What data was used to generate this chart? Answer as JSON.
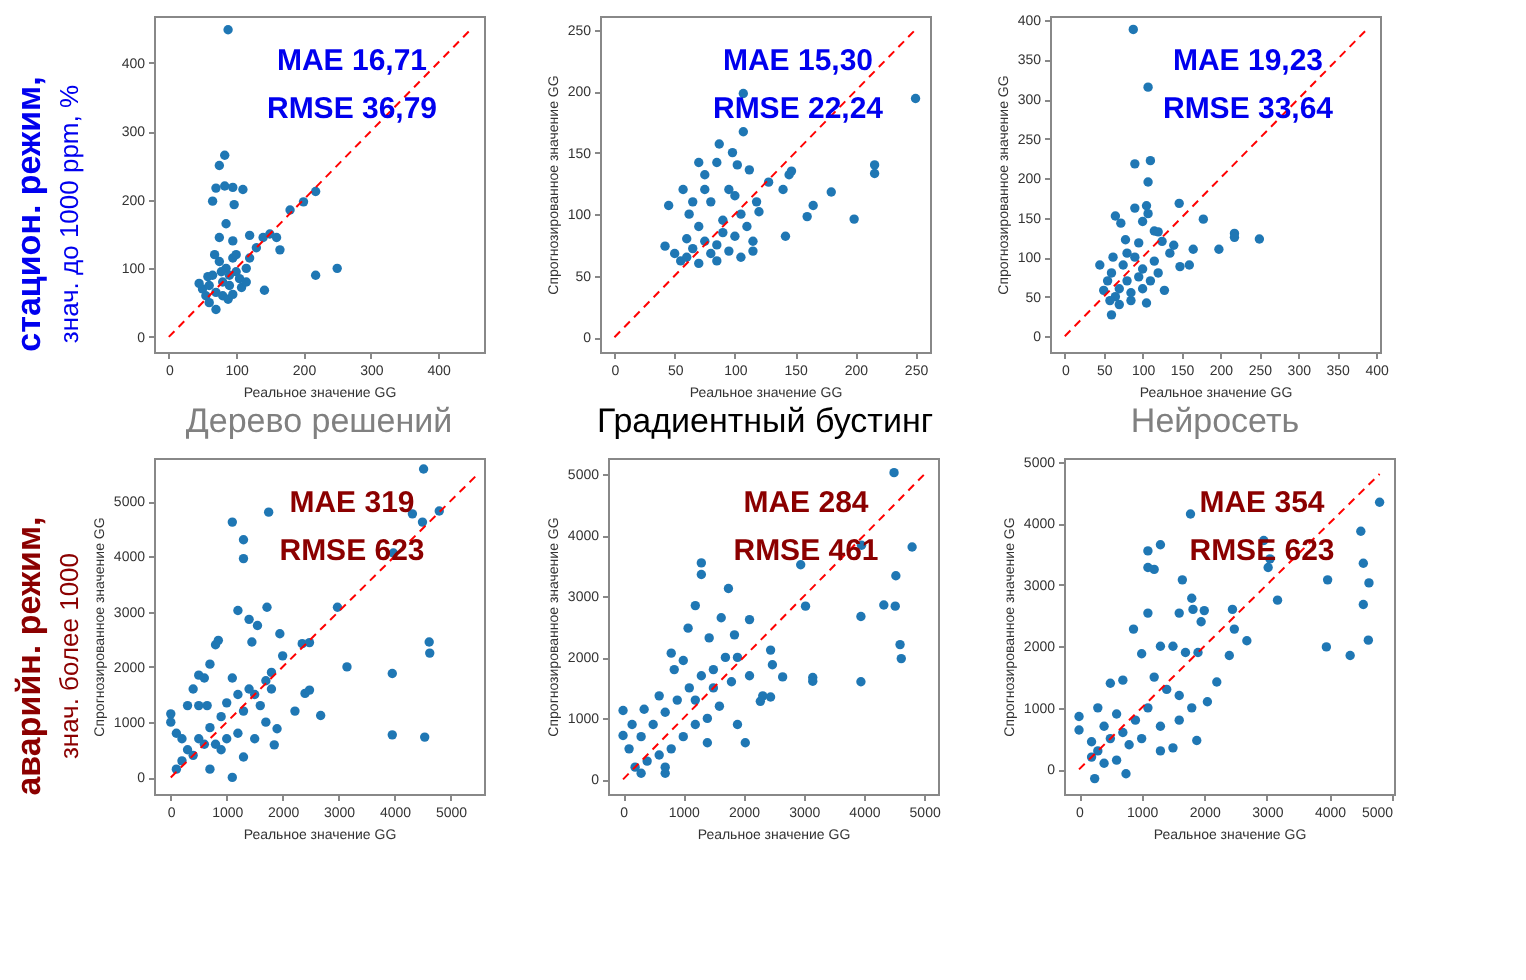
{
  "chart_data": [
    {
      "type": "scatter",
      "title": "Дерево решений",
      "xlabel": "Реальное значение GG",
      "xlim": [
        -22,
        468
      ],
      "ylim": [
        -22,
        468
      ],
      "xticks": [
        0,
        100,
        200,
        300,
        400
      ],
      "yticks": [
        0,
        100,
        200,
        300,
        400
      ],
      "annotations": [
        "MAE 16,71",
        "RMSE 36,79",
        "стацион. режим,",
        "знач. до 1000 ppm, %"
      ],
      "series": [
        {
          "marker": "circle",
          "color": "#1f77b4",
          "x": [
            88,
            83,
            75,
            70,
            83,
            95,
            110,
            65,
            97,
            85,
            75,
            95,
            120,
            200,
            218,
            180,
            140,
            150,
            160,
            165,
            130,
            142,
            218,
            250,
            50,
            45,
            60,
            70,
            55,
            65,
            75,
            80,
            85,
            90,
            95,
            100,
            105,
            115,
            60,
            70,
            80,
            90,
            100,
            120,
            68,
            78,
            58,
            88,
            108,
            115,
            95
          ],
          "values": [
            448,
            265,
            250,
            217,
            220,
            218,
            215,
            198,
            193,
            165,
            145,
            140,
            148,
            197,
            212,
            185,
            145,
            150,
            145,
            127,
            130,
            68,
            90,
            100,
            70,
            78,
            50,
            40,
            60,
            90,
            110,
            80,
            100,
            75,
            115,
            95,
            85,
            100,
            75,
            65,
            60,
            90,
            120,
            115,
            120,
            95,
            88,
            55,
            72,
            80,
            62
          ]
        },
        {
          "type": "line",
          "color": "#ff0000",
          "line_style": "dashed",
          "x": [
            0,
            446
          ],
          "values": [
            0,
            446
          ]
        }
      ]
    },
    {
      "type": "scatter",
      "title": "Градиентный бустинг",
      "xlabel": "Реальное значение GG",
      "ylabel": "Спрогнозированное значение GG",
      "xlim": [
        -12,
        262
      ],
      "ylim": [
        -12,
        261
      ],
      "xticks": [
        0,
        50,
        100,
        150,
        200,
        250
      ],
      "yticks": [
        0,
        50,
        100,
        150,
        200,
        250
      ],
      "annotations": [
        "MAE 15,30",
        "RMSE 22,24"
      ],
      "series": [
        {
          "marker": "circle",
          "color": "#1f77b4",
          "x": [
            107,
            250,
            107,
            87,
            70,
            85,
            98,
            102,
            112,
            75,
            128,
            147,
            145,
            140,
            216,
            216,
            180,
            165,
            160,
            199,
            142,
            115,
            115,
            45,
            57,
            62,
            42,
            50,
            55,
            60,
            65,
            70,
            75,
            80,
            85,
            90,
            95,
            100,
            105,
            110,
            120,
            95,
            75,
            80,
            100,
            60,
            70,
            85,
            65,
            90,
            118,
            105
          ],
          "values": [
            198,
            194,
            167,
            157,
            142,
            142,
            150,
            140,
            136,
            132,
            126,
            135,
            132,
            120,
            140,
            133,
            118,
            107,
            98,
            96,
            82,
            78,
            70,
            107,
            120,
            100,
            74,
            68,
            62,
            80,
            72,
            90,
            78,
            68,
            75,
            95,
            70,
            82,
            100,
            90,
            102,
            120,
            120,
            110,
            115,
            65,
            60,
            62,
            110,
            85,
            110,
            65
          ]
        },
        {
          "type": "line",
          "color": "#ff0000",
          "line_style": "dashed",
          "x": [
            0,
            249
          ],
          "values": [
            0,
            249
          ]
        }
      ]
    },
    {
      "type": "scatter",
      "title": "Нейросеть",
      "xlabel": "Реальное значение GG",
      "ylabel": "Спрогнозированное значение GG",
      "xlim": [
        -19,
        405
      ],
      "ylim": [
        -20,
        405
      ],
      "xticks": [
        0,
        50,
        100,
        150,
        200,
        250,
        300,
        350,
        400
      ],
      "yticks": [
        0,
        50,
        100,
        150,
        200,
        250,
        300,
        350,
        400
      ],
      "annotations": [
        "MAE 19,23",
        "RMSE 33,64"
      ],
      "series": [
        {
          "marker": "circle",
          "color": "#1f77b4",
          "x": [
            88,
            107,
            110,
            90,
            107,
            90,
            105,
            107,
            147,
            178,
            65,
            72,
            100,
            115,
            120,
            125,
            78,
            95,
            135,
            140,
            148,
            160,
            165,
            198,
            218,
            218,
            250,
            128,
            105,
            60,
            45,
            50,
            55,
            60,
            62,
            65,
            70,
            75,
            80,
            85,
            90,
            95,
            100,
            110,
            115,
            70,
            80,
            58,
            85,
            120,
            100
          ],
          "values": [
            388,
            315,
            222,
            218,
            195,
            162,
            165,
            155,
            168,
            148,
            152,
            143,
            145,
            133,
            132,
            120,
            122,
            118,
            105,
            115,
            88,
            90,
            110,
            110,
            130,
            125,
            123,
            58,
            42,
            27,
            90,
            58,
            70,
            80,
            100,
            50,
            60,
            90,
            70,
            45,
            100,
            75,
            85,
            70,
            95,
            40,
            105,
            45,
            55,
            80,
            60
          ]
        },
        {
          "type": "line",
          "color": "#ff0000",
          "line_style": "dashed",
          "x": [
            0,
            388
          ],
          "values": [
            0,
            388
          ]
        }
      ]
    },
    {
      "type": "scatter",
      "xlabel": "Реальное значение GG",
      "ylabel": "Спрогнозированное значение GG",
      "xlim": [
        -300,
        5600
      ],
      "ylim": [
        -300,
        5780
      ],
      "xticks": [
        0,
        1000,
        2000,
        3000,
        4000,
        5000
      ],
      "yticks": [
        0,
        1000,
        2000,
        3000,
        4000,
        5000
      ],
      "annotations": [
        "MAE 319",
        "RMSE 623",
        "аварийн. режим,",
        "знач. более 1000"
      ],
      "series": [
        {
          "marker": "circle",
          "color": "#1f77b4",
          "x": [
            4520,
            4800,
            4320,
            4500,
            1100,
            1300,
            1300,
            1750,
            3980,
            2980,
            1200,
            1720,
            1400,
            1550,
            850,
            800,
            1450,
            1950,
            2350,
            2480,
            4620,
            4630,
            3150,
            3960,
            3960,
            4540,
            2680,
            2220,
            2400,
            2480,
            1900,
            1850,
            1300,
            1100,
            0,
            0,
            400,
            500,
            600,
            700,
            1100,
            1000,
            1200,
            1500,
            1700,
            1800,
            1600,
            1300,
            900,
            700,
            500,
            300,
            200,
            100,
            400,
            600,
            800,
            1000,
            1200,
            1500,
            1700,
            500,
            650,
            300,
            900,
            2000,
            1800,
            1400,
            200,
            100,
            700
          ],
          "values": [
            5580,
            4820,
            4770,
            4620,
            4620,
            4300,
            3960,
            4800,
            4060,
            3080,
            3020,
            3080,
            2860,
            2750,
            2480,
            2400,
            2450,
            2600,
            2420,
            2440,
            2450,
            2250,
            2000,
            1880,
            770,
            730,
            1120,
            1200,
            1520,
            1580,
            880,
            590,
            370,
            0,
            1150,
            1000,
            1600,
            1850,
            1800,
            2050,
            1800,
            1350,
            1500,
            1500,
            1750,
            1600,
            1300,
            1200,
            1100,
            900,
            700,
            500,
            300,
            150,
            400,
            600,
            600,
            700,
            800,
            700,
            1000,
            1300,
            1300,
            1300,
            500,
            2200,
            1900,
            1600,
            700,
            800,
            150
          ]
        },
        {
          "type": "line",
          "color": "#ff0000",
          "line_style": "dashed",
          "x": [
            0,
            5500
          ],
          "values": [
            0,
            5500
          ]
        }
      ]
    },
    {
      "type": "scatter",
      "xlabel": "Реальное значение GG",
      "ylabel": "Спрогнозированное значение GG",
      "xlim": [
        -250,
        5230
      ],
      "ylim": [
        -240,
        5270
      ],
      "xticks": [
        0,
        1000,
        2000,
        3000,
        4000,
        5000
      ],
      "yticks": [
        0,
        1000,
        2000,
        3000,
        4000,
        5000
      ],
      "annotations": [
        "MAE 284",
        "RMSE 461"
      ],
      "series": [
        {
          "marker": "circle",
          "color": "#1f77b4",
          "x": [
            4500,
            4800,
            3960,
            2950,
            1300,
            1300,
            1750,
            1200,
            3030,
            4330,
            4520,
            4530,
            3950,
            4600,
            4620,
            3950,
            3150,
            3150,
            2650,
            2100,
            1630,
            1080,
            1000,
            800,
            850,
            1430,
            1850,
            2450,
            2480,
            2320,
            2450,
            2280,
            2030,
            1400,
            1900,
            0,
            0,
            350,
            600,
            500,
            700,
            900,
            1100,
            1300,
            1500,
            1700,
            1900,
            1600,
            1400,
            1200,
            1000,
            800,
            600,
            400,
            200,
            100,
            300,
            700,
            700,
            1500,
            1800,
            1200,
            2100,
            300,
            150
          ],
          "values": [
            5030,
            3810,
            3840,
            3520,
            3550,
            3360,
            3130,
            2850,
            2840,
            2860,
            2840,
            3340,
            2670,
            2210,
            1980,
            1600,
            1670,
            1610,
            1680,
            2620,
            2650,
            2480,
            1950,
            2070,
            1800,
            2320,
            2370,
            2120,
            1880,
            1370,
            1350,
            1280,
            600,
            600,
            900,
            1130,
            720,
            1150,
            1370,
            900,
            1100,
            1300,
            1500,
            1700,
            1800,
            2000,
            2000,
            1200,
            1000,
            900,
            700,
            500,
            400,
            300,
            200,
            500,
            700,
            200,
            100,
            1500,
            1600,
            1300,
            1700,
            100,
            900
          ]
        },
        {
          "type": "line",
          "color": "#ff0000",
          "line_style": "dashed",
          "x": [
            0,
            5000
          ],
          "values": [
            0,
            5000
          ]
        }
      ]
    },
    {
      "type": "scatter",
      "xlabel": "Реальное значение GG",
      "ylabel": "Спрогнозированное значение GG",
      "xlim": [
        -240,
        5030
      ],
      "ylim": [
        -400,
        5060
      ],
      "xticks": [
        0,
        1000,
        2000,
        3000,
        4000,
        5000
      ],
      "yticks": [
        0,
        1000,
        2000,
        3000,
        4000,
        5000
      ],
      "annotations": [
        "MAE 354",
        "RMSE 623"
      ],
      "series": [
        {
          "marker": "circle",
          "color": "#1f77b4",
          "x": [
            4800,
            1780,
            4500,
            2950,
            1300,
            1100,
            1100,
            1200,
            3020,
            3050,
            4540,
            3970,
            4630,
            1650,
            3170,
            4540,
            1100,
            1600,
            1800,
            1820,
            2000,
            1950,
            2450,
            2480,
            870,
            3950,
            4330,
            4620,
            2680,
            2400,
            2050,
            2200,
            1880,
            1500,
            1300,
            750,
            250,
            0,
            0,
            300,
            500,
            700,
            1000,
            1300,
            1500,
            1700,
            1900,
            1200,
            1400,
            1600,
            1100,
            900,
            700,
            500,
            300,
            200,
            400,
            600,
            800,
            1000,
            1300,
            1600,
            1800,
            600,
            400,
            200
          ],
          "values": [
            4340,
            4150,
            3870,
            3720,
            3650,
            3550,
            3280,
            3250,
            3280,
            3420,
            3350,
            3080,
            3030,
            3080,
            2750,
            2680,
            2540,
            2540,
            2780,
            2600,
            2580,
            2400,
            2600,
            2280,
            2280,
            1990,
            1850,
            2100,
            2090,
            1850,
            1100,
            1420,
            470,
            350,
            300,
            -70,
            -150,
            860,
            640,
            1000,
            1400,
            1450,
            1880,
            2000,
            2000,
            1900,
            1900,
            1500,
            1300,
            1200,
            1000,
            800,
            600,
            500,
            300,
            200,
            700,
            900,
            400,
            500,
            700,
            800,
            1000,
            150,
            100,
            450
          ]
        },
        {
          "type": "line",
          "color": "#ff0000",
          "line_style": "dashed",
          "x": [
            0,
            4800
          ],
          "values": [
            0,
            4800
          ]
        }
      ]
    }
  ]
}
